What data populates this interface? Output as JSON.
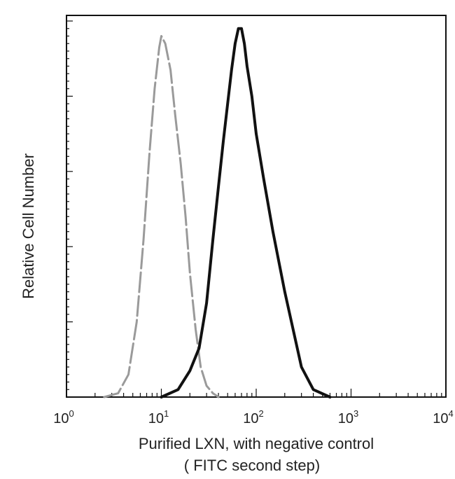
{
  "chart_data": {
    "type": "line",
    "title": "",
    "xlabel": "Purified LXN, with negative control",
    "xlabel_line2": "( FITC second step)",
    "ylabel": "Relative Cell Number",
    "x_scale": "log",
    "xlim": [
      1,
      10000
    ],
    "ylim": [
      0,
      100
    ],
    "x_tick_labels": [
      {
        "base": "10",
        "exp": "0"
      },
      {
        "base": "10",
        "exp": "1"
      },
      {
        "base": "10",
        "exp": "2"
      },
      {
        "base": "10",
        "exp": "3"
      },
      {
        "base": "10",
        "exp": "4"
      }
    ],
    "grid": false,
    "series": [
      {
        "color": "#9a9a9a",
        "style": "dashed",
        "x": [
          2.5,
          3.5,
          4.5,
          5.5,
          6.5,
          7.5,
          8.5,
          9.5,
          10,
          11,
          12.5,
          14,
          16,
          18,
          20,
          23,
          26,
          30,
          35,
          40
        ],
        "y": [
          0,
          1,
          6,
          20,
          42,
          65,
          82,
          93,
          96,
          94,
          87,
          75,
          62,
          48,
          33,
          18,
          8,
          3,
          1,
          0
        ]
      },
      {
        "color": "#111111",
        "style": "solid",
        "x": [
          10,
          15,
          20,
          25,
          30,
          35,
          40,
          45,
          50,
          55,
          60,
          65,
          70,
          75,
          80,
          90,
          100,
          120,
          150,
          200,
          250,
          300,
          400,
          600
        ],
        "y": [
          0,
          2,
          7,
          13,
          25,
          42,
          56,
          68,
          78,
          87,
          94,
          98,
          98,
          94,
          88,
          80,
          70,
          58,
          44,
          28,
          17,
          8,
          2,
          0
        ]
      }
    ]
  }
}
